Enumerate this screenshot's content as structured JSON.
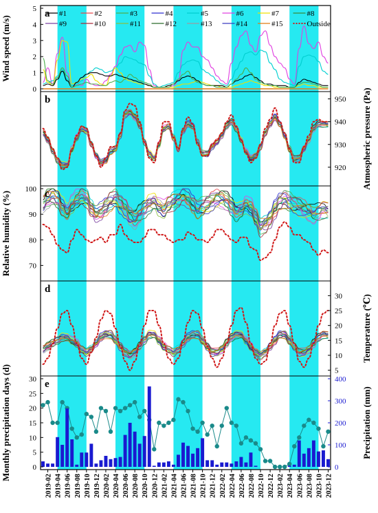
{
  "chart_data": {
    "type": "line",
    "x_tick_labels": [
      "2019-02",
      "2019-04",
      "2019-06",
      "2019-08",
      "2019-10",
      "2019-12",
      "2020-02",
      "2020-04",
      "2020-06",
      "2020-08",
      "2020-10",
      "2020-12",
      "2021-02",
      "2021-04",
      "2021-06",
      "2021-08",
      "2021-10",
      "2021-12",
      "2022-02",
      "2022-04",
      "2022-06",
      "2022-08",
      "2022-10",
      "2022-12",
      "2023-02",
      "2023-04",
      "2023-06",
      "2023-08",
      "2023-10",
      "2023-12"
    ],
    "shaded_periods": [
      {
        "start": "2019-04",
        "end": "2019-10"
      },
      {
        "start": "2020-04",
        "end": "2020-10"
      },
      {
        "start": "2021-04",
        "end": "2021-10"
      },
      {
        "start": "2022-04",
        "end": "2022-10"
      },
      {
        "start": "2023-04",
        "end": "2023-10"
      }
    ],
    "shade_color": "#00e5ee",
    "legend": {
      "placement": "top",
      "entries": [
        {
          "name": "#1",
          "color": "#000000"
        },
        {
          "name": "#2",
          "color": "#e8484a"
        },
        {
          "name": "#3",
          "color": "#4cae4c"
        },
        {
          "name": "#4",
          "color": "#2f2fd0"
        },
        {
          "name": "#5",
          "color": "#00cfd0"
        },
        {
          "name": "#6",
          "color": "#e040e0"
        },
        {
          "name": "#7",
          "color": "#f0e000"
        },
        {
          "name": "#8",
          "color": "#3a8a3a"
        },
        {
          "name": "#9",
          "color": "#7a40a0"
        },
        {
          "name": "#10",
          "color": "#a82a3a"
        },
        {
          "name": "#11",
          "color": "#8ac040"
        },
        {
          "name": "#12",
          "color": "#2a6a2a"
        },
        {
          "name": "#13",
          "color": "#9a9aa0"
        },
        {
          "name": "#14",
          "color": "#3a3ac0"
        },
        {
          "name": "#15",
          "color": "#e07a10"
        },
        {
          "name": "Outside",
          "color": "#d01818",
          "dashed": true
        }
      ]
    },
    "panels": [
      {
        "letter": "a",
        "ylabel": "Wind speed (m/s)",
        "ylim": [
          0,
          5
        ],
        "y_ticks": [
          0,
          1,
          2,
          3,
          4,
          5
        ],
        "side": "left",
        "outside": [
          0,
          0,
          0,
          0,
          0,
          0,
          0,
          0,
          0,
          0,
          0,
          0,
          0,
          0,
          0,
          0,
          0,
          0,
          0,
          0,
          0,
          0,
          0,
          0,
          0,
          0,
          0,
          0,
          0,
          0,
          0,
          0,
          0,
          0,
          0,
          0,
          0,
          0,
          0,
          0,
          0,
          0,
          0,
          0,
          0,
          0,
          0,
          0,
          0,
          0,
          0,
          0,
          0,
          0,
          0,
          0,
          0,
          0,
          0,
          0
        ],
        "series_samples": {
          "#6": [
            0.4,
            1.3,
            0.3,
            2.2,
            3.2,
            1.0,
            0.1,
            0.3,
            0.2,
            0.6,
            0.3,
            0.2,
            0.2,
            0.5,
            0.9,
            1.4,
            2.1,
            2.6,
            2.7,
            2.3,
            2.9,
            2.7,
            1.2,
            0.2,
            0.1,
            0.1,
            0.1,
            0.2,
            0.5,
            2.4,
            2.9,
            2.6,
            2.6,
            2.0,
            1.8,
            1.3,
            0.8,
            0.5,
            0.3,
            1.6,
            2.6,
            3.3,
            3.6,
            2.7,
            2.3,
            3.3,
            3.6,
            2.7,
            2.0,
            1.6,
            1.3,
            0.6,
            0.3,
            2.5,
            3.9,
            2.8,
            2.5,
            2.9,
            2.0,
            1.6
          ],
          "#5": [
            0.3,
            0.4,
            0.5,
            0.8,
            1.2,
            0.6,
            0.2,
            0.3,
            0.5,
            0.9,
            1.1,
            1.3,
            1.2,
            1.0,
            1.1,
            1.3,
            1.6,
            2.0,
            1.9,
            1.8,
            1.6,
            1.5,
            0.8,
            0.3,
            0.1,
            0.2,
            0.3,
            0.4,
            1.0,
            1.5,
            1.7,
            1.8,
            1.7,
            1.2,
            1.0,
            0.8,
            0.5,
            0.3,
            0.2,
            0.6,
            1.2,
            1.7,
            2.2,
            2.3,
            2.1,
            2.4,
            2.3,
            1.6,
            1.2,
            0.6,
            0.4,
            0.3,
            0.2,
            1.4,
            2.0,
            2.1,
            2.0,
            1.7,
            1.1,
            0.9
          ],
          "#7": [
            1.2,
            0.4,
            0.2,
            1.8,
            3.0,
            2.9,
            0.3,
            0.4,
            0.6,
            0.7,
            0.9,
            0.5,
            0.3,
            0.2,
            0.8,
            1.3,
            1.0,
            0.6,
            0.5,
            0.4,
            0.3,
            0.3,
            0.2,
            0.1,
            0.1,
            0.1,
            0.1,
            0.1,
            0.2,
            0.3,
            0.3,
            0.4,
            0.5,
            0.4,
            0.3,
            0.2,
            0.2,
            0.1,
            0.1,
            0.1,
            0.2,
            0.3,
            0.4,
            0.5,
            0.4,
            0.3,
            0.2,
            0.2,
            0.1,
            0.1,
            0.1,
            0.1,
            0.1,
            0.2,
            0.3,
            0.2,
            0.2,
            0.1,
            0.1,
            0.1
          ],
          "#1": [
            0.2,
            0.3,
            0.2,
            0.6,
            1.1,
            0.5,
            0.1,
            0.4,
            0.7,
            0.9,
            1.0,
            1.0,
            0.9,
            0.8,
            0.8,
            0.9,
            0.8,
            0.7,
            0.6,
            0.5,
            0.4,
            0.3,
            0.2,
            0.1,
            0.1,
            0.1,
            0.2,
            0.3,
            0.5,
            0.7,
            0.8,
            0.7,
            0.5,
            0.3,
            0.2,
            0.2,
            0.2,
            0.2,
            0.1,
            0.3,
            0.5,
            0.6,
            0.8,
            0.9,
            0.7,
            0.5,
            0.3,
            0.3,
            0.2,
            0.2,
            0.2,
            0.1,
            0.1,
            0.4,
            0.6,
            0.5,
            0.4,
            0.3,
            0.2,
            0.2
          ],
          "#3": [
            1.9,
            0.5,
            0.3,
            0.7,
            1.3,
            0.8,
            0.1,
            0.2,
            0.3,
            0.4,
            0.3,
            0.3,
            0.2,
            0.2,
            0.4,
            0.5,
            0.4,
            0.6,
            0.9,
            0.7,
            0.5,
            0.4,
            0.3,
            0.1,
            0.1,
            0.1,
            0.1,
            0.3,
            0.6,
            0.9,
            1.1,
            0.6,
            0.4,
            0.3,
            0.2,
            0.2,
            0.1,
            0.1,
            0.1,
            0.3,
            0.6,
            0.9,
            1.3,
            1.0,
            0.6,
            0.4,
            0.3,
            0.2,
            0.2,
            0.1,
            0.1,
            0.1,
            0.1,
            0.3,
            0.4,
            0.4,
            0.3,
            0.2,
            0.1,
            0.1
          ]
        }
      },
      {
        "letter": "b",
        "ylabel": "Atmospheric pressure (Pa)",
        "ylim": [
          913,
          952
        ],
        "y_ticks": [
          920,
          930,
          940,
          950
        ],
        "side": "right",
        "outside": [
          937,
          933,
          928,
          924,
          919,
          920,
          928,
          934,
          938,
          937,
          931,
          925,
          920,
          924,
          929,
          929,
          935,
          945,
          948,
          947,
          940,
          931,
          924,
          922,
          931,
          940,
          940,
          933,
          928,
          937,
          942,
          939,
          930,
          925,
          925,
          930,
          932,
          935,
          940,
          943,
          938,
          932,
          926,
          922,
          924,
          930,
          937,
          941,
          946,
          940,
          935,
          928,
          922,
          922,
          929,
          934,
          940,
          941,
          940,
          940
        ],
        "indoor": [
          935,
          932,
          927,
          923,
          921,
          921,
          928,
          933,
          937,
          936,
          930,
          925,
          922,
          923,
          927,
          928,
          934,
          943,
          944,
          942,
          938,
          931,
          926,
          924,
          930,
          937,
          938,
          933,
          928,
          936,
          939,
          938,
          931,
          926,
          926,
          929,
          931,
          934,
          938,
          940,
          937,
          932,
          927,
          924,
          925,
          929,
          935,
          939,
          942,
          939,
          934,
          928,
          924,
          924,
          928,
          932,
          937,
          939,
          939,
          939
        ]
      },
      {
        "letter": "c",
        "ylabel": "Relative humidity (%)",
        "ylim": [
          65,
          100
        ],
        "y_ticks": [
          70,
          80,
          90,
          100
        ],
        "side": "left",
        "outside": [
          86,
          85,
          82,
          78,
          76,
          75,
          80,
          84,
          82,
          80,
          79,
          80,
          81,
          79,
          82,
          82,
          86,
          82,
          80,
          79,
          79,
          81,
          84,
          84,
          82,
          82,
          80,
          79,
          80,
          80,
          83,
          82,
          80,
          80,
          79,
          81,
          84,
          84,
          82,
          80,
          79,
          81,
          81,
          77,
          76,
          72,
          73,
          75,
          80,
          85,
          87,
          85,
          82,
          82,
          80,
          79,
          76,
          74,
          76,
          75
        ],
        "indoor": [
          94,
          96,
          97,
          96,
          93,
          91,
          94,
          96,
          97,
          96,
          92,
          90,
          91,
          93,
          95,
          96,
          94,
          92,
          89,
          88,
          90,
          92,
          94,
          95,
          93,
          92,
          94,
          95,
          96,
          97,
          96,
          94,
          92,
          93,
          94,
          95,
          96,
          96,
          95,
          93,
          91,
          92,
          94,
          93,
          89,
          85,
          86,
          88,
          92,
          95,
          96,
          95,
          94,
          93,
          92,
          91,
          90,
          91,
          92,
          92
        ]
      },
      {
        "letter": "d",
        "ylabel": "Temperature (℃)",
        "ylim": [
          4,
          34
        ],
        "y_ticks": [
          5,
          10,
          15,
          20,
          25,
          30
        ],
        "side": "right",
        "outside": [
          7,
          9,
          14,
          19,
          24,
          25,
          20,
          14,
          9,
          7,
          11,
          16,
          22,
          25,
          24,
          19,
          13,
          8,
          5,
          8,
          14,
          20,
          25,
          25,
          20,
          14,
          9,
          7,
          9,
          15,
          21,
          25,
          24,
          19,
          13,
          9,
          6,
          9,
          14,
          20,
          25,
          26,
          21,
          14,
          9,
          7,
          8,
          14,
          20,
          24,
          25,
          20,
          14,
          8,
          6,
          9,
          14,
          20,
          24,
          25
        ],
        "indoor": [
          12,
          13,
          14,
          15,
          16,
          16,
          15,
          14,
          12,
          11,
          12,
          14,
          16,
          17,
          17,
          15,
          13,
          11,
          10,
          11,
          13,
          15,
          17,
          17,
          15,
          13,
          12,
          11,
          12,
          14,
          16,
          17,
          17,
          15,
          13,
          11,
          11,
          12,
          14,
          16,
          17,
          17,
          15,
          13,
          11,
          10,
          11,
          13,
          15,
          17,
          17,
          15,
          13,
          11,
          11,
          12,
          14,
          16,
          17,
          17
        ]
      },
      {
        "letter": "e",
        "ylabel": "Monthly precipitation days (d)",
        "ylabel_right": "Precipitation (mm)",
        "ylim": [
          0,
          30
        ],
        "y_ticks": [
          0,
          5,
          10,
          15,
          20,
          25,
          30
        ],
        "ylim_right": [
          0,
          400
        ],
        "y_ticks_right": [
          0,
          100,
          200,
          300,
          400
        ],
        "precipitation_days": [
          21,
          22,
          15,
          15,
          22,
          20,
          13,
          10,
          11,
          18,
          17,
          12,
          20,
          19,
          12,
          20,
          19,
          20,
          21,
          22,
          17,
          19,
          16,
          6,
          15,
          14,
          15,
          16,
          23,
          22,
          19,
          13,
          12,
          15,
          11,
          14,
          7,
          14,
          20,
          15,
          14,
          8,
          10,
          9,
          8,
          6,
          2,
          2,
          0,
          0,
          0,
          1,
          7,
          10,
          14,
          16,
          15,
          13,
          7,
          12
        ],
        "precipitation_mm": [
          25,
          15,
          15,
          135,
          100,
          265,
          125,
          10,
          65,
          65,
          105,
          15,
          30,
          50,
          35,
          40,
          45,
          145,
          200,
          160,
          105,
          140,
          365,
          5,
          20,
          20,
          25,
          10,
          55,
          110,
          95,
          60,
          85,
          130,
          30,
          30,
          10,
          20,
          20,
          15,
          25,
          45,
          20,
          65,
          5,
          0,
          0,
          0,
          0,
          0,
          0,
          5,
          10,
          120,
          60,
          85,
          120,
          70,
          75,
          35
        ]
      }
    ]
  }
}
